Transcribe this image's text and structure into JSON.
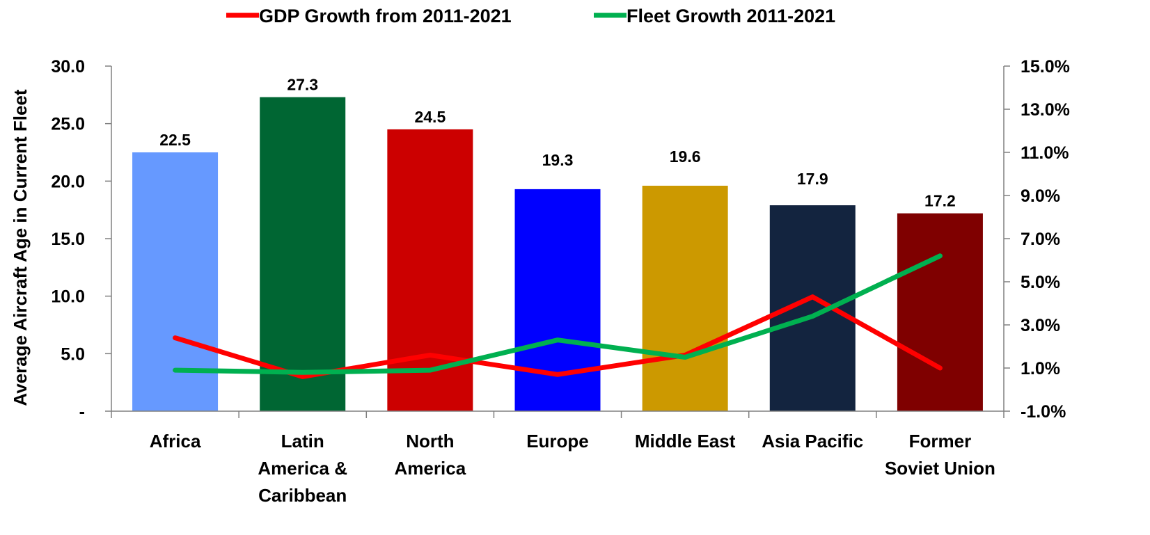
{
  "chart_data": {
    "type": "bar+line",
    "categories": [
      [
        "Africa"
      ],
      [
        "Latin",
        "America &",
        "Caribbean"
      ],
      [
        "North",
        "America"
      ],
      [
        "Europe"
      ],
      [
        "Middle East"
      ],
      [
        "Asia Pacific"
      ],
      [
        "Former",
        "Soviet Union"
      ]
    ],
    "bars": {
      "values": [
        22.5,
        27.3,
        24.5,
        19.3,
        19.6,
        17.9,
        17.2
      ],
      "labels": [
        "22.5",
        "27.3",
        "24.5",
        "19.3",
        "19.6",
        "17.9",
        "17.2"
      ],
      "colors": [
        "#6699FF",
        "#006633",
        "#CC0000",
        "#0000FF",
        "#CC9900",
        "#13243F",
        "#7F0000"
      ]
    },
    "series": [
      {
        "name": "GDP Growth from 2011-2021",
        "color": "#FF0000",
        "values": [
          2.4,
          0.6,
          1.6,
          0.7,
          1.6,
          4.3,
          1.0
        ]
      },
      {
        "name": "Fleet Growth 2011-2021",
        "color": "#00B050",
        "values": [
          0.9,
          0.8,
          0.9,
          2.3,
          1.5,
          3.4,
          6.2
        ]
      }
    ],
    "ylabel": "Average Aircraft Age in Current Fleet",
    "ylim": [
      0,
      30
    ],
    "yticks": [
      "-",
      "5.0",
      "10.0",
      "15.0",
      "20.0",
      "25.0",
      "30.0"
    ],
    "y2lim": [
      -1,
      15
    ],
    "y2ticks": [
      "-1.0%",
      "1.0%",
      "3.0%",
      "5.0%",
      "7.0%",
      "9.0%",
      "11.0%",
      "13.0%",
      "15.0%"
    ],
    "legend_position": "top",
    "grid": false
  }
}
